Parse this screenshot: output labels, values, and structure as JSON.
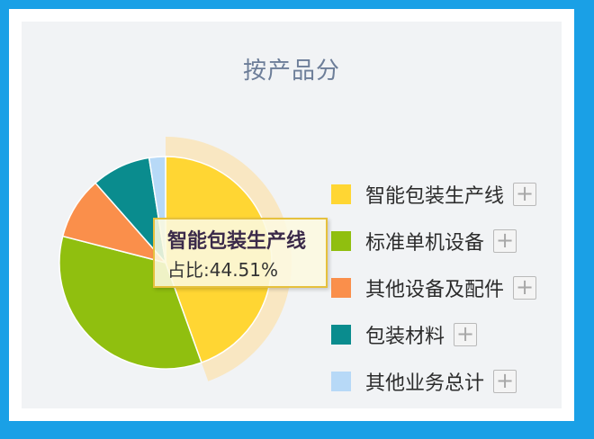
{
  "chart_data": {
    "type": "pie",
    "title": "按产品分",
    "slices": [
      {
        "label": "智能包装生产线",
        "value": 44.51,
        "color": "#ffd633",
        "highlighted": true
      },
      {
        "label": "标准单机设备",
        "value": 34.5,
        "color": "#90bf0f"
      },
      {
        "label": "其他设备及配件",
        "value": 9.5,
        "color": "#fa8f4b"
      },
      {
        "label": "包装材料",
        "value": 9.0,
        "color": "#0a8c8e"
      },
      {
        "label": "其他业务总计",
        "value": 2.49,
        "color": "#b7d9f7"
      }
    ],
    "legend_placement": "right"
  },
  "legend": {
    "expand_symbol": "+"
  },
  "tooltip": {
    "title": "智能包装生产线",
    "label": "占比:",
    "value": "44.51%"
  }
}
